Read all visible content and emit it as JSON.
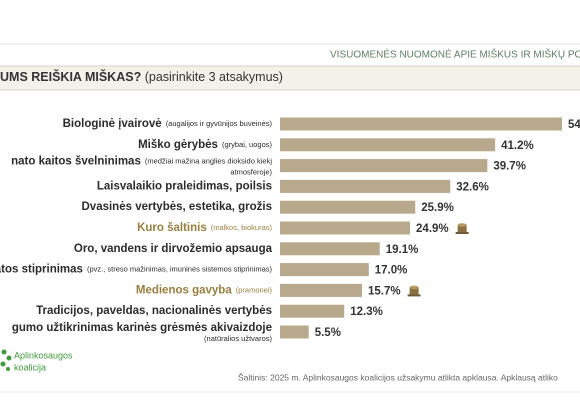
{
  "header": "VISUOMENĖS NUOMONĖ APIE MIŠKUS IR MIŠKŲ POL",
  "chart_data": {
    "type": "bar",
    "orientation": "horizontal",
    "title": "UMS REIŠKIA MIŠKAS?",
    "subtitle": "(pasirinkite 3 atsakymus)",
    "categories": [
      "Biologinė įvairovė",
      "Miško gėrybės",
      "nato kaitos švelninimas",
      "Laisvalaikio praleidimas, poilsis",
      "Dvasinės vertybės, estetika, grožis",
      "Kuro šaltinis",
      "Oro, vandens ir dirvožemio apsauga",
      "katos stiprinimas",
      "Medienos gavyba",
      "Tradicijos, paveldas, nacionalinės vertybės",
      "gumo užtikrinimas karinės grėsmės akivaizdoje"
    ],
    "notes": [
      {
        "inline": "(augalijos ir gyvūnijos buveinės)"
      },
      {
        "inline": "(grybai, uogos)"
      },
      {
        "inline": "(medžiai mažina anglies dioksido kiekį",
        "below": "atmosferoje)"
      },
      null,
      null,
      {
        "inline": "(malkos, biokuras)"
      },
      null,
      {
        "inline": "(pvz., streso mažinimas, imuninės sistemos stiprinimas)"
      },
      {
        "inline": "(pramonei)"
      },
      null,
      {
        "below": "(natūralios užtvaros)"
      }
    ],
    "values": [
      54,
      41.2,
      39.7,
      32.6,
      25.9,
      24.9,
      19.1,
      17.0,
      15.7,
      12.3,
      5.5
    ],
    "value_labels": [
      "54",
      "41.2%",
      "39.7%",
      "32.6%",
      "25.9%",
      "24.9%",
      "19.1%",
      "17.0%",
      "15.7%",
      "12.3%",
      "5.5%"
    ],
    "color": "#b8a88c",
    "label_color": "#2b2b2b",
    "highlight_color": "#9a7f3e",
    "highlighted": [
      5,
      8
    ]
  },
  "logo": [
    "Aplinkosaugos",
    "koalicija"
  ],
  "source": "Šaltinis: 2025 m. Aplinkosaugos koalicijos užsakymu atlikta apklausa. Apklausą atliko"
}
